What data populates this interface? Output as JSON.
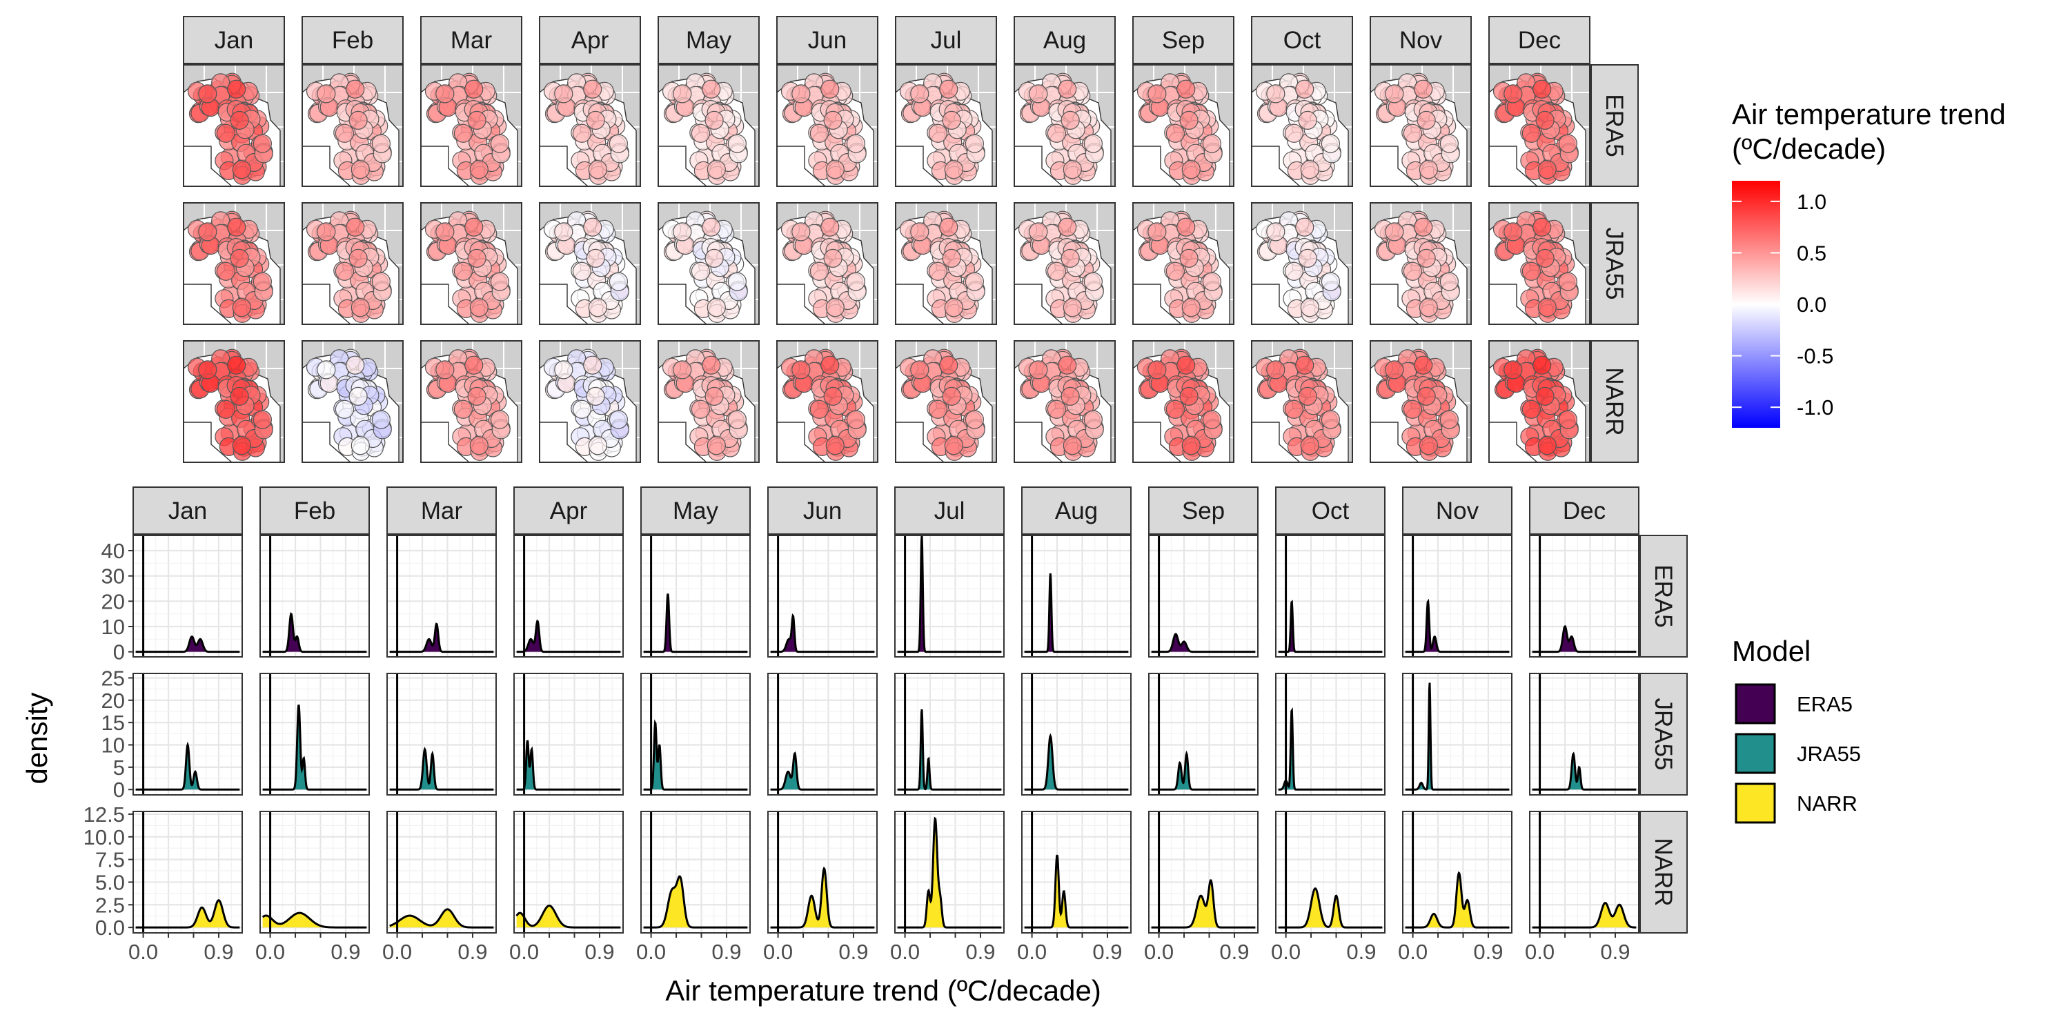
{
  "chart_data": [
    {
      "type": "map",
      "title": "",
      "columns": [
        "Jan",
        "Feb",
        "Mar",
        "Apr",
        "May",
        "Jun",
        "Jul",
        "Aug",
        "Sep",
        "Oct",
        "Nov",
        "Dec"
      ],
      "rows": [
        "ERA5",
        "JRA55",
        "NARR"
      ],
      "mean_trend": {
        "ERA5": [
          0.7,
          0.35,
          0.45,
          0.25,
          0.2,
          0.3,
          0.28,
          0.25,
          0.4,
          0.15,
          0.25,
          0.65
        ],
        "JRA55": [
          0.6,
          0.4,
          0.4,
          0.05,
          0.05,
          0.25,
          0.3,
          0.25,
          0.35,
          0.05,
          0.3,
          0.6
        ],
        "NARR": [
          0.8,
          -0.1,
          0.45,
          -0.05,
          0.35,
          0.6,
          0.5,
          0.45,
          0.65,
          0.55,
          0.6,
          0.8
        ]
      },
      "colorbar": {
        "title_line1": "Air temperature trend",
        "title_line2": "(ºC/decade)",
        "ticks": [
          "1.0",
          "0.5",
          "0.0",
          "-0.5",
          "-1.0"
        ],
        "range": [
          -1.2,
          1.2
        ],
        "low_color": "#0000ff",
        "mid_color": "#ffffff",
        "high_color": "#ff0000"
      }
    },
    {
      "type": "area",
      "columns": [
        "Jan",
        "Feb",
        "Mar",
        "Apr",
        "May",
        "Jun",
        "Jul",
        "Aug",
        "Sep",
        "Oct",
        "Nov",
        "Dec"
      ],
      "rows": [
        "ERA5",
        "JRA55",
        "NARR"
      ],
      "xlabel": "Air temperature trend (ºC/decade)",
      "ylabel": "density",
      "xlim": [
        -0.12,
        1.18
      ],
      "xticks": [
        0.0,
        0.3,
        0.6,
        0.9
      ],
      "xtick_labels": [
        "0.0",
        "",
        "",
        "0.9"
      ],
      "xtick_labels_shown": [
        "0.0",
        "0.9"
      ],
      "row_axes": [
        {
          "ylim": [
            -2,
            46
          ],
          "ticks": [
            0,
            10,
            20,
            30,
            40
          ],
          "labels": [
            "0",
            "10",
            "20",
            "30",
            "40"
          ]
        },
        {
          "ylim": [
            -1.2,
            26
          ],
          "ticks": [
            0,
            5,
            10,
            15,
            20,
            25
          ],
          "labels": [
            "0",
            "5",
            "10",
            "15",
            "20",
            "25"
          ]
        },
        {
          "ylim": [
            -0.6,
            12.8
          ],
          "ticks": [
            0,
            2.5,
            5,
            7.5,
            10,
            12.5
          ],
          "labels": [
            "0.0",
            "2.5",
            "5.0",
            "7.5",
            "10.0",
            "12.5"
          ]
        }
      ],
      "series": [
        {
          "name": "ERA5",
          "color": "#440154",
          "peaks": [
            [
              [
                0.58,
                0.03,
                6
              ],
              [
                0.68,
                0.03,
                5
              ]
            ],
            [
              [
                0.25,
                0.022,
                15
              ],
              [
                0.32,
                0.02,
                6
              ]
            ],
            [
              [
                0.38,
                0.03,
                5
              ],
              [
                0.47,
                0.02,
                11
              ]
            ],
            [
              [
                0.08,
                0.03,
                5
              ],
              [
                0.16,
                0.02,
                12
              ]
            ],
            [
              [
                0.2,
                0.015,
                23
              ]
            ],
            [
              [
                0.13,
                0.03,
                5
              ],
              [
                0.18,
                0.015,
                13
              ]
            ],
            [
              [
                0.2,
                0.012,
                46
              ]
            ],
            [
              [
                0.22,
                0.012,
                31
              ]
            ],
            [
              [
                0.2,
                0.03,
                7
              ],
              [
                0.3,
                0.03,
                4
              ]
            ],
            [
              [
                0.07,
                0.012,
                20
              ]
            ],
            [
              [
                0.18,
                0.015,
                20
              ],
              [
                0.26,
                0.02,
                6
              ]
            ],
            [
              [
                0.3,
                0.025,
                10
              ],
              [
                0.38,
                0.025,
                6
              ]
            ]
          ]
        },
        {
          "name": "JRA55",
          "color": "#21908c",
          "peaks": [
            [
              [
                0.53,
                0.02,
                10
              ],
              [
                0.62,
                0.02,
                4
              ]
            ],
            [
              [
                0.34,
                0.018,
                19
              ],
              [
                0.4,
                0.015,
                7
              ]
            ],
            [
              [
                0.33,
                0.022,
                9
              ],
              [
                0.42,
                0.018,
                8
              ]
            ],
            [
              [
                0.04,
                0.015,
                11
              ],
              [
                0.09,
                0.015,
                9
              ]
            ],
            [
              [
                0.05,
                0.015,
                15
              ],
              [
                0.1,
                0.015,
                10
              ]
            ],
            [
              [
                0.12,
                0.03,
                4
              ],
              [
                0.2,
                0.02,
                8
              ]
            ],
            [
              [
                0.2,
                0.012,
                18
              ],
              [
                0.28,
                0.012,
                7
              ]
            ],
            [
              [
                0.22,
                0.025,
                12
              ]
            ],
            [
              [
                0.25,
                0.02,
                6
              ],
              [
                0.33,
                0.018,
                8
              ]
            ],
            [
              [
                0.07,
                0.012,
                18
              ],
              [
                0.0,
                0.02,
                2
              ]
            ],
            [
              [
                0.2,
                0.01,
                24
              ],
              [
                0.1,
                0.02,
                1.5
              ]
            ],
            [
              [
                0.4,
                0.02,
                8
              ],
              [
                0.47,
                0.015,
                5
              ]
            ]
          ]
        },
        {
          "name": "NARR",
          "color": "#fde725",
          "peaks": [
            [
              [
                0.7,
                0.05,
                2.2
              ],
              [
                0.9,
                0.05,
                3
              ]
            ],
            [
              [
                -0.05,
                0.08,
                1.3
              ],
              [
                0.35,
                0.12,
                1.6
              ]
            ],
            [
              [
                0.15,
                0.12,
                1.3
              ],
              [
                0.6,
                0.08,
                2
              ]
            ],
            [
              [
                -0.05,
                0.06,
                1.6
              ],
              [
                0.3,
                0.08,
                2.4
              ]
            ],
            [
              [
                0.25,
                0.05,
                4
              ],
              [
                0.35,
                0.04,
                5
              ]
            ],
            [
              [
                0.4,
                0.04,
                3.5
              ],
              [
                0.55,
                0.03,
                6.5
              ]
            ],
            [
              [
                0.28,
                0.02,
                4
              ],
              [
                0.36,
                0.025,
                12
              ],
              [
                0.42,
                0.02,
                3
              ]
            ],
            [
              [
                0.3,
                0.02,
                8
              ],
              [
                0.38,
                0.02,
                4
              ]
            ],
            [
              [
                0.5,
                0.05,
                3.5
              ],
              [
                0.62,
                0.03,
                5
              ]
            ],
            [
              [
                0.35,
                0.05,
                4.3
              ],
              [
                0.6,
                0.03,
                3.5
              ]
            ],
            [
              [
                0.25,
                0.04,
                1.5
              ],
              [
                0.55,
                0.03,
                6
              ],
              [
                0.65,
                0.03,
                3
              ]
            ],
            [
              [
                0.78,
                0.05,
                2.7
              ],
              [
                0.95,
                0.05,
                2.5
              ]
            ]
          ]
        }
      ],
      "legend_title": "Model",
      "legend_items": [
        "ERA5",
        "JRA55",
        "NARR"
      ]
    }
  ]
}
